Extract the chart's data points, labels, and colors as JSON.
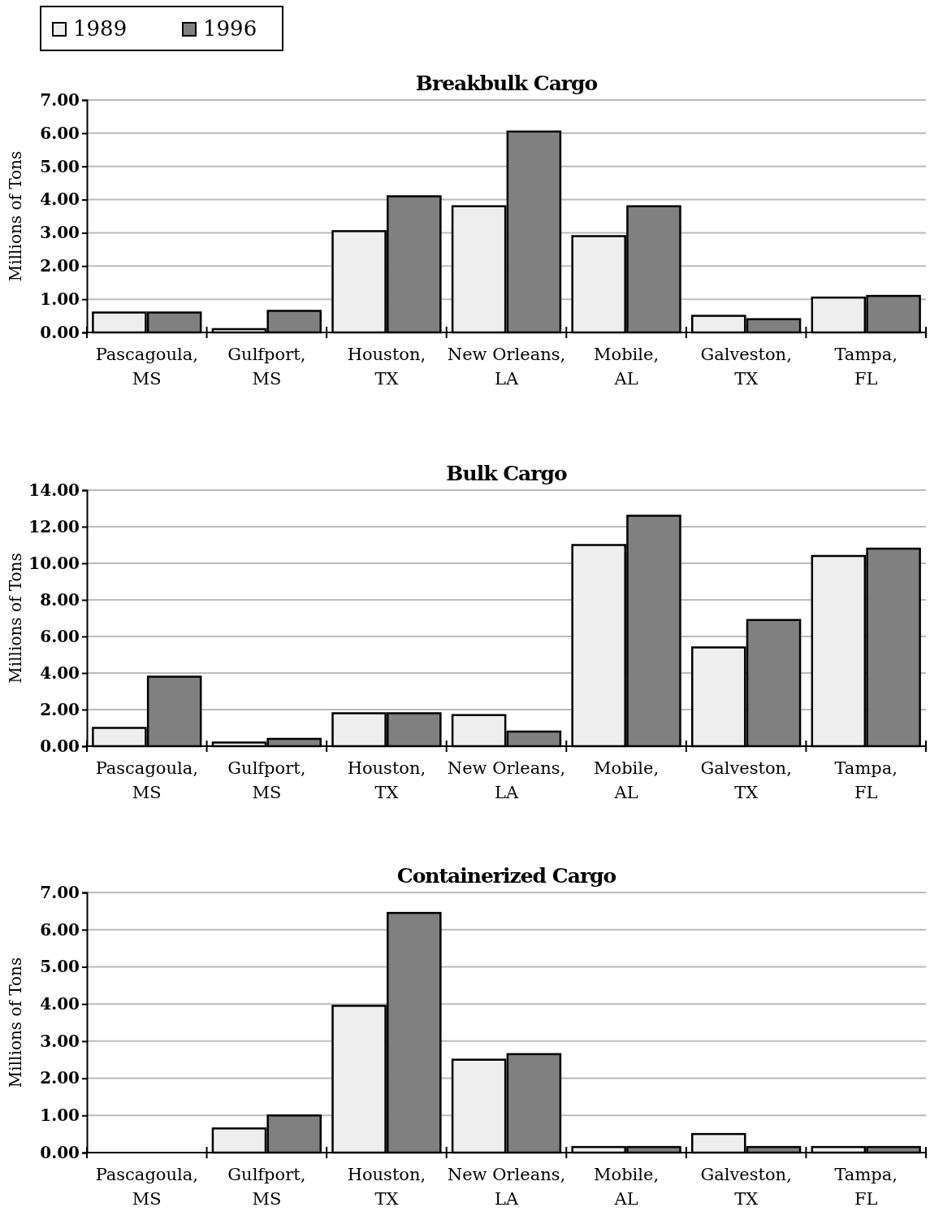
{
  "chart_data": [
    {
      "type": "bar",
      "title": "Breakbulk Cargo",
      "ylabel": "Millions of Tons",
      "categories": [
        "Pascagoula, MS",
        "Gulfport, MS",
        "Houston, TX",
        "New Orleans, LA",
        "Mobile, AL",
        "Galveston, TX",
        "Tampa, FL"
      ],
      "series": [
        {
          "name": "1989",
          "color": "#eeeeee",
          "values": [
            0.6,
            0.1,
            3.05,
            3.8,
            2.9,
            0.5,
            1.05
          ]
        },
        {
          "name": "1996",
          "color": "#808080",
          "values": [
            0.6,
            0.65,
            4.1,
            6.05,
            3.8,
            0.4,
            1.1
          ]
        }
      ],
      "ylim": [
        0,
        7
      ],
      "yticks": [
        {
          "value": 0,
          "label": "0.00"
        },
        {
          "value": 1,
          "label": "1.00"
        },
        {
          "value": 2,
          "label": "2.00"
        },
        {
          "value": 3,
          "label": "3.00"
        },
        {
          "value": 4,
          "label": "4.00"
        },
        {
          "value": 5,
          "label": "5.00"
        },
        {
          "value": 6,
          "label": "6.00"
        },
        {
          "value": 7,
          "label": "7.00"
        }
      ],
      "grid": "y",
      "legend": "top left"
    },
    {
      "type": "bar",
      "title": "Bulk Cargo",
      "ylabel": "Millions of Tons",
      "categories": [
        "Pascagoula, MS",
        "Gulfport, MS",
        "Houston, TX",
        "New Orleans, LA",
        "Mobile, AL",
        "Galveston, TX",
        "Tampa, FL"
      ],
      "series": [
        {
          "color": "#eeeeee",
          "values": [
            1.0,
            0.2,
            1.8,
            1.7,
            11.0,
            5.4,
            10.4
          ]
        },
        {
          "color": "#808080",
          "values": [
            3.8,
            0.4,
            1.8,
            0.8,
            12.6,
            6.9,
            10.8
          ]
        }
      ],
      "ylim": [
        0,
        14
      ],
      "yticks": [
        {
          "value": 0,
          "label": "0.00"
        },
        {
          "value": 2,
          "label": "2.00"
        },
        {
          "value": 4,
          "label": "4.00"
        },
        {
          "value": 6,
          "label": "6.00"
        },
        {
          "value": 8,
          "label": "8.00"
        },
        {
          "value": 10,
          "label": "10.00"
        },
        {
          "value": 12,
          "label": "12.00"
        },
        {
          "value": 14,
          "label": "14.00"
        }
      ],
      "grid": "y"
    },
    {
      "type": "bar",
      "title": "Containerized Cargo",
      "ylabel": "Millions of Tons",
      "categories": [
        "Pascagoula, MS",
        "Gulfport, MS",
        "Houston, TX",
        "New Orleans, LA",
        "Mobile, AL",
        "Galveston, TX",
        "Tampa, FL"
      ],
      "series": [
        {
          "color": "#eeeeee",
          "values": [
            0,
            0.65,
            3.95,
            2.5,
            0.15,
            0.5,
            0.15
          ]
        },
        {
          "color": "#808080",
          "values": [
            0,
            1.0,
            6.45,
            2.65,
            0.15,
            0.15,
            0.15
          ]
        }
      ],
      "ylim": [
        0,
        7
      ],
      "yticks": [
        {
          "value": 0,
          "label": "0.00"
        },
        {
          "value": 1,
          "label": "1.00"
        },
        {
          "value": 2,
          "label": "2.00"
        },
        {
          "value": 3,
          "label": "3.00"
        },
        {
          "value": 4,
          "label": "4.00"
        },
        {
          "value": 5,
          "label": "5.00"
        },
        {
          "value": 6,
          "label": "6.00"
        },
        {
          "value": 7,
          "label": "7.00"
        }
      ],
      "grid": "y"
    }
  ]
}
